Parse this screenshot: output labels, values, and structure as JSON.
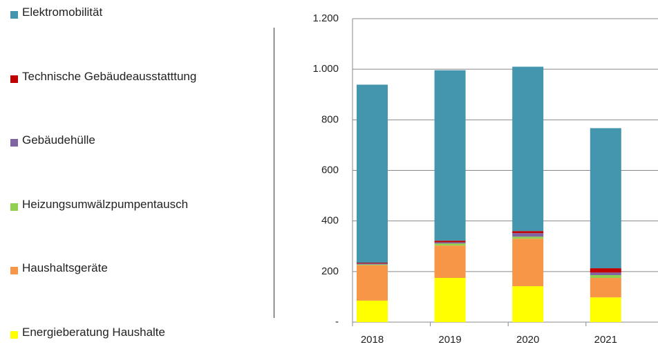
{
  "chart_data": {
    "type": "stacked_bar",
    "categories": [
      "2018",
      "2019",
      "2020",
      "2021"
    ],
    "series": [
      {
        "name": "Energieberatung Haushalte",
        "color": "#ffff00",
        "values": [
          85,
          175,
          142,
          98
        ]
      },
      {
        "name": "Haushaltsgeräte",
        "color": "#f79646",
        "values": [
          140,
          128,
          188,
          77
        ]
      },
      {
        "name": "Heizungsumwälzpumpentausch",
        "color": "#92d050",
        "values": [
          3,
          8,
          8,
          11
        ]
      },
      {
        "name": "Gebäudehülle",
        "color": "#8064a2",
        "values": [
          4,
          5,
          14,
          10
        ]
      },
      {
        "name": "Technische Gebäudeausstatttung",
        "color": "#c00000",
        "values": [
          3,
          6,
          8,
          17
        ]
      },
      {
        "name": "Elektromobilität",
        "color": "#4396ae",
        "values": [
          704,
          674,
          650,
          554
        ]
      }
    ],
    "ylim": [
      0,
      1200
    ],
    "yticks": [
      {
        "value": 0,
        "label": "-"
      },
      200,
      400,
      600,
      800,
      {
        "value": 1000,
        "label": "1.000"
      },
      {
        "value": 1200,
        "label": "1.200"
      }
    ],
    "grid": true
  }
}
